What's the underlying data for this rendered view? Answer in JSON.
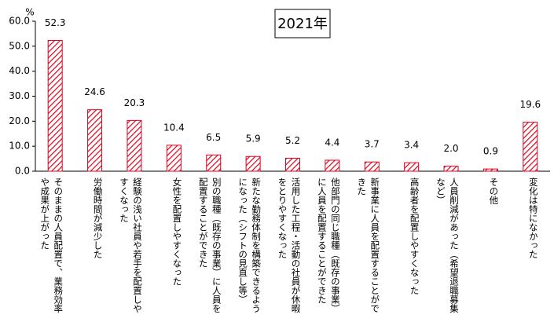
{
  "chart_data": {
    "type": "bar",
    "title": "2021年",
    "unit_label": "%",
    "categories": [
      "そのままの人員配置で、業務効率や成果が上がった",
      "労働時間が減少した",
      "経験の浅い社員や若手を配置しやすくなった",
      "女性を配置しやすくなった",
      "別の職種（既存の事業）に人員を配置することができた",
      "新たな勤務体制を構築できるようになった（シフトの見直し等）",
      "活用した工程・活動の社員が休暇をとりやすくなった",
      "他部門の同じ職種（既存の事業）に人員を配置することができた",
      "新事業に人員を配置することができた",
      "高齢者を配置しやすくなった",
      "人員削減があった（希望退職募集など）",
      "その他",
      "変化は特になかった"
    ],
    "values": [
      52.3,
      24.6,
      20.3,
      10.4,
      6.5,
      5.9,
      5.2,
      4.4,
      3.7,
      3.4,
      2.0,
      0.9,
      19.6
    ],
    "value_labels": [
      "52.3",
      "24.6",
      "20.3",
      "10.4",
      "6.5",
      "5.9",
      "5.2",
      "4.4",
      "3.7",
      "3.4",
      "2.0",
      "0.9",
      "19.6"
    ],
    "color": "#e0001b",
    "ylim": [
      0,
      60
    ],
    "yticks": [
      {
        "value": 0,
        "label": "0.0"
      },
      {
        "value": 10,
        "label": "10.0"
      },
      {
        "value": 20,
        "label": "20.0"
      },
      {
        "value": 30,
        "label": "30.0"
      },
      {
        "value": 40,
        "label": "40.0"
      },
      {
        "value": 50,
        "label": "50.0"
      },
      {
        "value": 60,
        "label": "60.0"
      }
    ],
    "grid": false
  }
}
